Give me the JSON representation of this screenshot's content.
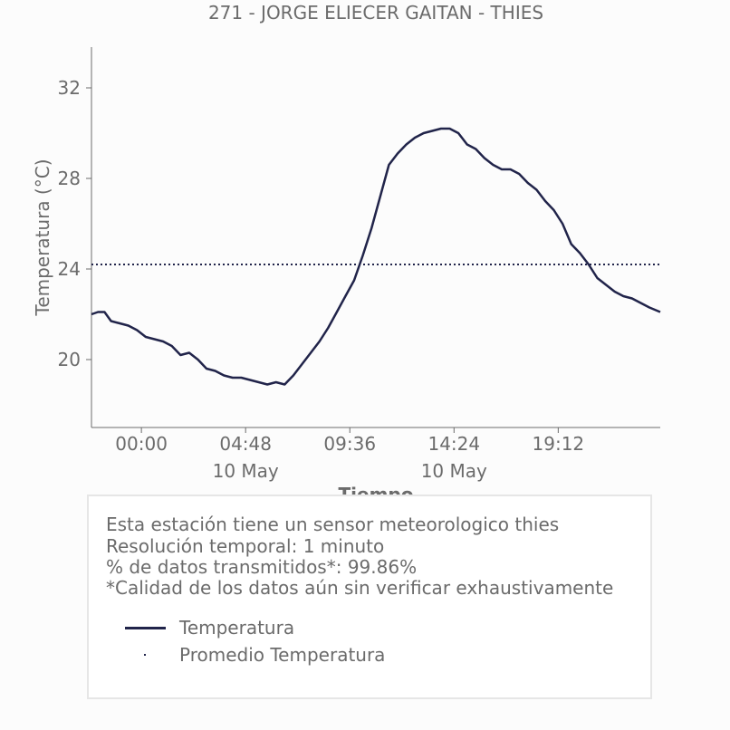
{
  "chart_data": {
    "type": "line",
    "title": "271 - JORGE ELIECER GAITAN - THIES",
    "xlabel": "Tiempo",
    "ylabel": "Temperatura (°C)",
    "xlim_hours": [
      -2.3,
      23.9
    ],
    "ylim": [
      17,
      33.8
    ],
    "yticks": [
      20,
      24,
      28,
      32
    ],
    "xticks": [
      {
        "hour": 0,
        "label": "00:00",
        "sublabel": ""
      },
      {
        "hour": 4.8,
        "label": "04:48",
        "sublabel": "10 May"
      },
      {
        "hour": 9.6,
        "label": "09:36",
        "sublabel": ""
      },
      {
        "hour": 14.4,
        "label": "14:24",
        "sublabel": "10 May"
      },
      {
        "hour": 19.2,
        "label": "19:12",
        "sublabel": ""
      }
    ],
    "series": [
      {
        "name": "Temperatura",
        "color": "#21244a",
        "x_hours": [
          -2.3,
          -2.0,
          -1.7,
          -1.4,
          -1.0,
          -0.6,
          -0.2,
          0.2,
          0.6,
          1.0,
          1.4,
          1.8,
          2.2,
          2.6,
          3.0,
          3.4,
          3.8,
          4.2,
          4.6,
          5.0,
          5.4,
          5.8,
          6.2,
          6.6,
          7.0,
          7.4,
          7.8,
          8.2,
          8.6,
          9.0,
          9.4,
          9.8,
          10.2,
          10.6,
          11.0,
          11.4,
          11.8,
          12.2,
          12.6,
          13.0,
          13.4,
          13.8,
          14.2,
          14.6,
          15.0,
          15.4,
          15.8,
          16.2,
          16.6,
          17.0,
          17.4,
          17.8,
          18.2,
          18.6,
          19.0,
          19.4,
          19.8,
          20.2,
          20.6,
          21.0,
          21.4,
          21.8,
          22.2,
          22.6,
          23.0,
          23.4,
          23.9
        ],
        "values": [
          22.0,
          22.1,
          22.1,
          21.7,
          21.6,
          21.5,
          21.3,
          21.0,
          20.9,
          20.8,
          20.6,
          20.2,
          20.3,
          20.0,
          19.6,
          19.5,
          19.3,
          19.2,
          19.2,
          19.1,
          19.0,
          18.9,
          19.0,
          18.9,
          19.3,
          19.8,
          20.3,
          20.8,
          21.4,
          22.1,
          22.8,
          23.5,
          24.6,
          25.8,
          27.2,
          28.6,
          29.1,
          29.5,
          29.8,
          30.0,
          30.1,
          30.2,
          30.2,
          30.0,
          29.5,
          29.3,
          28.9,
          28.6,
          28.4,
          28.4,
          28.2,
          27.8,
          27.5,
          27.0,
          26.6,
          26.0,
          25.1,
          24.7,
          24.2,
          23.6,
          23.3,
          23.0,
          22.8,
          22.7,
          22.5,
          22.3,
          22.1
        ]
      },
      {
        "name": "Promedio Temperatura",
        "color": "#21244a",
        "style": "dotted",
        "value": 24.2
      }
    ],
    "grid": false,
    "legend_position": "below"
  },
  "info": {
    "line1": "Esta estación tiene un sensor meteorologico thies",
    "line2": "Resolución temporal: 1 minuto",
    "line3": "% de datos transmitidos*: 99.86%",
    "line4": "*Calidad de los datos aún sin verificar exhaustivamente"
  },
  "legend": {
    "item1": "Temperatura",
    "item2": "Promedio Temperatura"
  }
}
